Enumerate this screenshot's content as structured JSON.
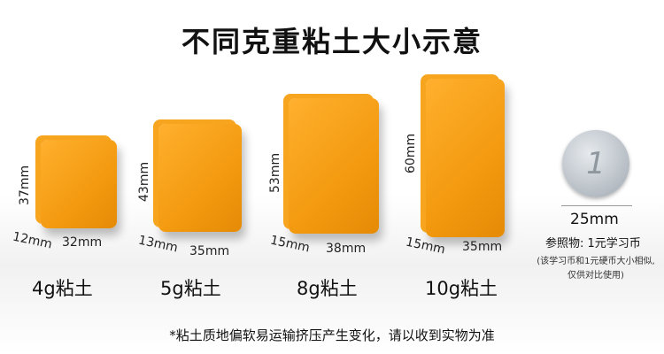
{
  "title": "不同克重粘土大小示意",
  "blocks": [
    {
      "weight": "4g粘土",
      "height": "37mm",
      "depth": "12mm",
      "width": "32mm"
    },
    {
      "weight": "5g粘土",
      "height": "43mm",
      "depth": "13mm",
      "width": "35mm"
    },
    {
      "weight": "8g粘土",
      "height": "53mm",
      "depth": "15mm",
      "width": "38mm"
    },
    {
      "weight": "10g粘土",
      "height": "60mm",
      "depth": "15mm",
      "width": "35mm"
    }
  ],
  "block_color": "#f39a10",
  "reference": {
    "coin_face": "1",
    "diameter": "25mm",
    "label": "参照物: 1元学习币",
    "note_line1": "(该学习币和1元硬币大小相似,",
    "note_line2": "仅供对比使用)"
  },
  "footnote": "*粘土质地偏软易运输挤压产生变化，请以收到实物为准"
}
